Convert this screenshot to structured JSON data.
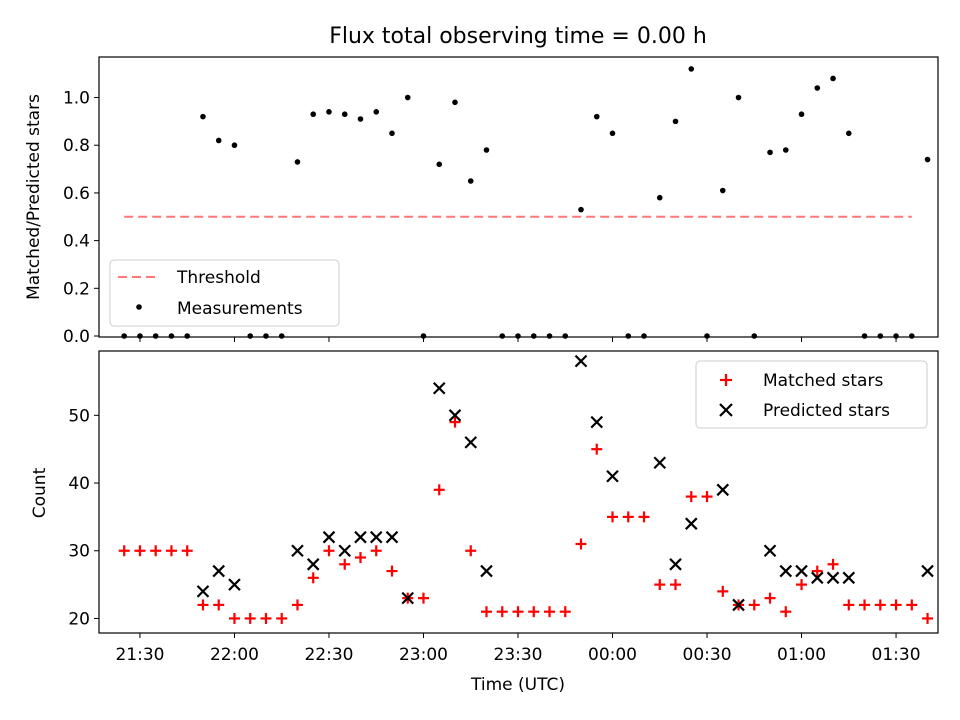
{
  "chart_data": [
    {
      "type": "scatter",
      "title": "Flux total observing time = 0.00 h",
      "ylabel": "Matched/Predicted stars",
      "xlabel": "",
      "x_unit": "time (UTC)",
      "xlim": [
        "21:17",
        "01:43"
      ],
      "ylim": [
        0,
        1.17
      ],
      "yticks": [
        "0.0",
        "0.2",
        "0.4",
        "0.6",
        "0.8",
        "1.0"
      ],
      "ytick_values": [
        0,
        0.2,
        0.4,
        0.6,
        0.8,
        1.0
      ],
      "threshold": {
        "name": "Threshold",
        "value": 0.5,
        "x_start": "21:25",
        "x_end": "01:35",
        "color": "#ff7777",
        "style": "dashed"
      },
      "legend": {
        "placement": "lower-left",
        "entries": [
          "Threshold",
          "Measurements"
        ]
      },
      "series": [
        {
          "name": "Measurements",
          "color": "#000000",
          "marker": "dot",
          "points": [
            [
              "21:25",
              0
            ],
            [
              "21:30",
              0
            ],
            [
              "21:35",
              0
            ],
            [
              "21:40",
              0
            ],
            [
              "21:45",
              0
            ],
            [
              "21:50",
              0.92
            ],
            [
              "21:55",
              0.82
            ],
            [
              "22:00",
              0.8
            ],
            [
              "22:05",
              0
            ],
            [
              "22:10",
              0
            ],
            [
              "22:15",
              0
            ],
            [
              "22:20",
              0.73
            ],
            [
              "22:25",
              0.93
            ],
            [
              "22:30",
              0.94
            ],
            [
              "22:35",
              0.93
            ],
            [
              "22:40",
              0.91
            ],
            [
              "22:45",
              0.94
            ],
            [
              "22:50",
              0.85
            ],
            [
              "22:55",
              1.0
            ],
            [
              "23:00",
              0
            ],
            [
              "23:05",
              0.72
            ],
            [
              "23:10",
              0.98
            ],
            [
              "23:15",
              0.65
            ],
            [
              "23:20",
              0.78
            ],
            [
              "23:25",
              0
            ],
            [
              "23:30",
              0
            ],
            [
              "23:35",
              0
            ],
            [
              "23:40",
              0
            ],
            [
              "23:45",
              0
            ],
            [
              "23:50",
              0.53
            ],
            [
              "23:55",
              0.92
            ],
            [
              "00:00",
              0.85
            ],
            [
              "00:05",
              0
            ],
            [
              "00:10",
              0
            ],
            [
              "00:15",
              0.58
            ],
            [
              "00:20",
              0.9
            ],
            [
              "00:25",
              1.12
            ],
            [
              "00:30",
              0
            ],
            [
              "00:35",
              0.61
            ],
            [
              "00:40",
              1.0
            ],
            [
              "00:45",
              0
            ],
            [
              "00:50",
              0.77
            ],
            [
              "00:55",
              0.78
            ],
            [
              "01:00",
              0.93
            ],
            [
              "01:05",
              1.04
            ],
            [
              "01:10",
              1.08
            ],
            [
              "01:15",
              0.85
            ],
            [
              "01:20",
              0
            ],
            [
              "01:25",
              0
            ],
            [
              "01:30",
              0
            ],
            [
              "01:35",
              0
            ],
            [
              "01:40",
              0.74
            ]
          ]
        }
      ]
    },
    {
      "type": "scatter",
      "title": "",
      "xlabel": "Time (UTC)",
      "ylabel": "Count",
      "xlim": [
        "21:17",
        "01:43"
      ],
      "ylim": [
        18,
        59.5
      ],
      "yticks": [
        "20",
        "30",
        "40",
        "50"
      ],
      "ytick_values": [
        20,
        30,
        40,
        50
      ],
      "xticks": [
        "21:30",
        "22:00",
        "22:30",
        "23:00",
        "23:30",
        "00:00",
        "00:30",
        "01:00",
        "01:30"
      ],
      "legend": {
        "placement": "top-right",
        "entries": [
          "Matched stars",
          "Predicted stars"
        ]
      },
      "series": [
        {
          "name": "Matched stars",
          "color": "#ff0000",
          "marker": "plus",
          "points": [
            [
              "21:25",
              30
            ],
            [
              "21:30",
              30
            ],
            [
              "21:35",
              30
            ],
            [
              "21:40",
              30
            ],
            [
              "21:45",
              30
            ],
            [
              "21:50",
              22
            ],
            [
              "21:55",
              22
            ],
            [
              "22:00",
              20
            ],
            [
              "22:05",
              20
            ],
            [
              "22:10",
              20
            ],
            [
              "22:15",
              20
            ],
            [
              "22:20",
              22
            ],
            [
              "22:25",
              26
            ],
            [
              "22:30",
              30
            ],
            [
              "22:35",
              28
            ],
            [
              "22:40",
              29
            ],
            [
              "22:45",
              30
            ],
            [
              "22:50",
              27
            ],
            [
              "22:55",
              23
            ],
            [
              "23:00",
              23
            ],
            [
              "23:05",
              39
            ],
            [
              "23:10",
              49
            ],
            [
              "23:15",
              30
            ],
            [
              "23:20",
              21
            ],
            [
              "23:25",
              21
            ],
            [
              "23:30",
              21
            ],
            [
              "23:35",
              21
            ],
            [
              "23:40",
              21
            ],
            [
              "23:45",
              21
            ],
            [
              "23:50",
              31
            ],
            [
              "23:55",
              45
            ],
            [
              "00:00",
              35
            ],
            [
              "00:05",
              35
            ],
            [
              "00:10",
              35
            ],
            [
              "00:15",
              25
            ],
            [
              "00:20",
              25
            ],
            [
              "00:25",
              38
            ],
            [
              "00:30",
              38
            ],
            [
              "00:35",
              24
            ],
            [
              "00:40",
              22
            ],
            [
              "00:45",
              22
            ],
            [
              "00:50",
              23
            ],
            [
              "00:55",
              21
            ],
            [
              "01:00",
              25
            ],
            [
              "01:05",
              27
            ],
            [
              "01:10",
              28
            ],
            [
              "01:15",
              22
            ],
            [
              "01:20",
              22
            ],
            [
              "01:25",
              22
            ],
            [
              "01:30",
              22
            ],
            [
              "01:35",
              22
            ],
            [
              "01:40",
              20
            ]
          ]
        },
        {
          "name": "Predicted stars",
          "color": "#000000",
          "marker": "x",
          "points": [
            [
              "21:50",
              24
            ],
            [
              "21:55",
              27
            ],
            [
              "22:00",
              25
            ],
            [
              "22:20",
              30
            ],
            [
              "22:25",
              28
            ],
            [
              "22:30",
              32
            ],
            [
              "22:35",
              30
            ],
            [
              "22:40",
              32
            ],
            [
              "22:45",
              32
            ],
            [
              "22:50",
              32
            ],
            [
              "22:55",
              23
            ],
            [
              "23:05",
              54
            ],
            [
              "23:10",
              50
            ],
            [
              "23:15",
              46
            ],
            [
              "23:20",
              27
            ],
            [
              "23:50",
              58
            ],
            [
              "23:55",
              49
            ],
            [
              "00:00",
              41
            ],
            [
              "00:15",
              43
            ],
            [
              "00:20",
              28
            ],
            [
              "00:25",
              34
            ],
            [
              "00:35",
              39
            ],
            [
              "00:40",
              22
            ],
            [
              "00:50",
              30
            ],
            [
              "00:55",
              27
            ],
            [
              "01:00",
              27
            ],
            [
              "01:05",
              26
            ],
            [
              "01:10",
              26
            ],
            [
              "01:15",
              26
            ],
            [
              "01:40",
              27
            ]
          ]
        }
      ]
    }
  ]
}
